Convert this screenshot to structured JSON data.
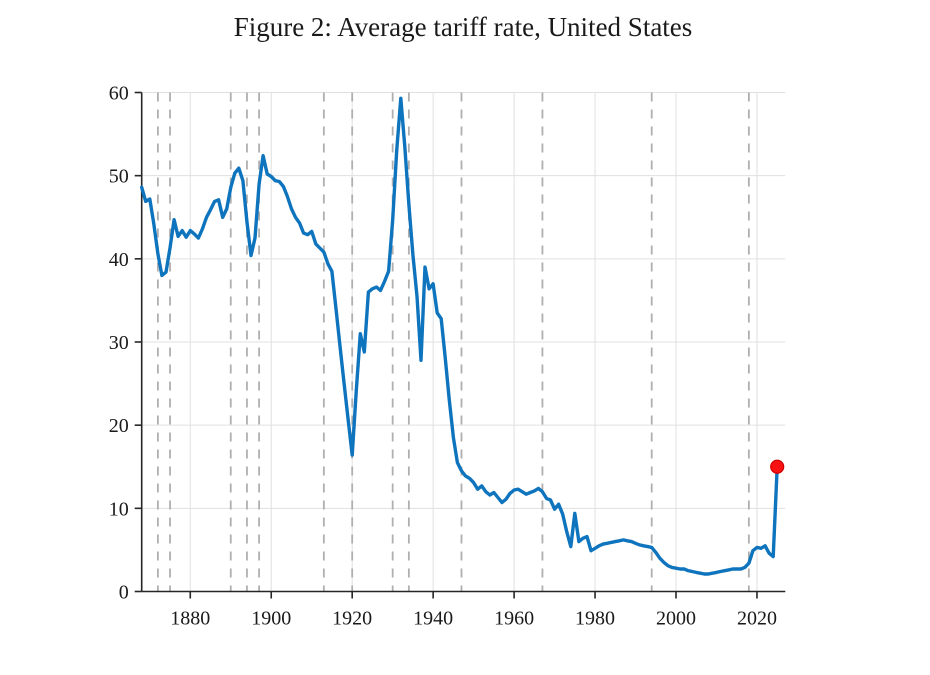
{
  "page": {
    "background": "#ffffff"
  },
  "chart_data": {
    "type": "line",
    "title": "Figure 2: Average tariff rate, United States",
    "xlabel": "",
    "ylabel": "",
    "xlim": [
      1868,
      2027
    ],
    "ylim": [
      0,
      60
    ],
    "x_ticks": [
      1880,
      1900,
      1920,
      1940,
      1960,
      1980,
      2000,
      2020
    ],
    "y_ticks": [
      0,
      10,
      20,
      30,
      40,
      50,
      60
    ],
    "grid": true,
    "legend": "none",
    "event_years_dashed": [
      1872,
      1875,
      1890,
      1894,
      1897,
      1913,
      1920,
      1930,
      1934,
      1947,
      1967,
      1994,
      2018
    ],
    "series": [
      {
        "name": "Average tariff rate (%)",
        "start_year": 1868,
        "x": [
          1868,
          1869,
          1870,
          1871,
          1872,
          1873,
          1874,
          1875,
          1876,
          1877,
          1878,
          1879,
          1880,
          1881,
          1882,
          1883,
          1884,
          1885,
          1886,
          1887,
          1888,
          1889,
          1890,
          1891,
          1892,
          1893,
          1894,
          1895,
          1896,
          1897,
          1898,
          1899,
          1900,
          1901,
          1902,
          1903,
          1904,
          1905,
          1906,
          1907,
          1908,
          1909,
          1910,
          1911,
          1912,
          1913,
          1914,
          1915,
          1916,
          1917,
          1918,
          1919,
          1920,
          1921,
          1922,
          1923,
          1924,
          1925,
          1926,
          1927,
          1928,
          1929,
          1930,
          1931,
          1932,
          1933,
          1934,
          1935,
          1936,
          1937,
          1938,
          1939,
          1940,
          1941,
          1942,
          1943,
          1944,
          1945,
          1946,
          1947,
          1948,
          1949,
          1950,
          1951,
          1952,
          1953,
          1954,
          1955,
          1956,
          1957,
          1958,
          1959,
          1960,
          1961,
          1962,
          1963,
          1964,
          1965,
          1966,
          1967,
          1968,
          1969,
          1970,
          1971,
          1972,
          1973,
          1974,
          1975,
          1976,
          1977,
          1978,
          1979,
          1980,
          1981,
          1982,
          1983,
          1984,
          1985,
          1986,
          1987,
          1988,
          1989,
          1990,
          1991,
          1992,
          1993,
          1994,
          1995,
          1996,
          1997,
          1998,
          1999,
          2000,
          2001,
          2002,
          2003,
          2004,
          2005,
          2006,
          2007,
          2008,
          2009,
          2010,
          2011,
          2012,
          2013,
          2014,
          2015,
          2016,
          2017,
          2018,
          2019,
          2020,
          2021,
          2022,
          2023,
          2024,
          2025
        ],
        "y": [
          48.6,
          46.9,
          47.2,
          44.2,
          40.6,
          38.0,
          38.4,
          41.3,
          44.7,
          42.7,
          43.4,
          42.6,
          43.4,
          43.0,
          42.5,
          43.6,
          45.0,
          45.9,
          46.9,
          47.1,
          45.0,
          46.0,
          48.6,
          50.3,
          50.9,
          49.4,
          44.5,
          40.4,
          42.5,
          49.0,
          52.4,
          50.2,
          49.9,
          49.4,
          49.3,
          48.7,
          47.5,
          46.0,
          45.0,
          44.3,
          43.1,
          42.9,
          43.3,
          41.8,
          41.3,
          40.8,
          39.4,
          38.5,
          34.0,
          29.5,
          25.0,
          20.7,
          16.4,
          24.0,
          31.0,
          28.8,
          36.0,
          36.4,
          36.6,
          36.2,
          37.3,
          38.5,
          44.7,
          53.0,
          59.3,
          53.5,
          46.5,
          40.5,
          35.5,
          27.8,
          39.0,
          36.4,
          37.0,
          33.5,
          32.8,
          28.0,
          23.0,
          18.5,
          15.5,
          14.5,
          13.9,
          13.6,
          13.1,
          12.3,
          12.7,
          12.0,
          11.6,
          11.9,
          11.3,
          10.7,
          11.1,
          11.8,
          12.2,
          12.3,
          12.0,
          11.7,
          11.9,
          12.1,
          12.4,
          12.0,
          11.2,
          11.0,
          9.9,
          10.5,
          9.3,
          7.2,
          5.4,
          9.4,
          6.0,
          6.4,
          6.6,
          4.9,
          5.2,
          5.5,
          5.7,
          5.8,
          5.9,
          6.0,
          6.1,
          6.2,
          6.1,
          6.0,
          5.8,
          5.6,
          5.5,
          5.4,
          5.3,
          4.7,
          4.0,
          3.5,
          3.1,
          2.9,
          2.8,
          2.7,
          2.7,
          2.5,
          2.4,
          2.3,
          2.2,
          2.1,
          2.1,
          2.2,
          2.3,
          2.4,
          2.5,
          2.6,
          2.7,
          2.7,
          2.7,
          2.9,
          3.4,
          4.9,
          5.3,
          5.2,
          5.5,
          4.6,
          4.2,
          15.0
        ]
      }
    ],
    "highlight_point": {
      "x": 2025,
      "y": 15.0
    },
    "colors": {
      "line": "#0e74bd",
      "marker_fill": "#fa1212",
      "marker_edge": "#cf0000",
      "grid": "#e0e0e0",
      "event_line": "#afafaf",
      "axis": "#262626",
      "label_text": "#1a1a1a"
    }
  }
}
